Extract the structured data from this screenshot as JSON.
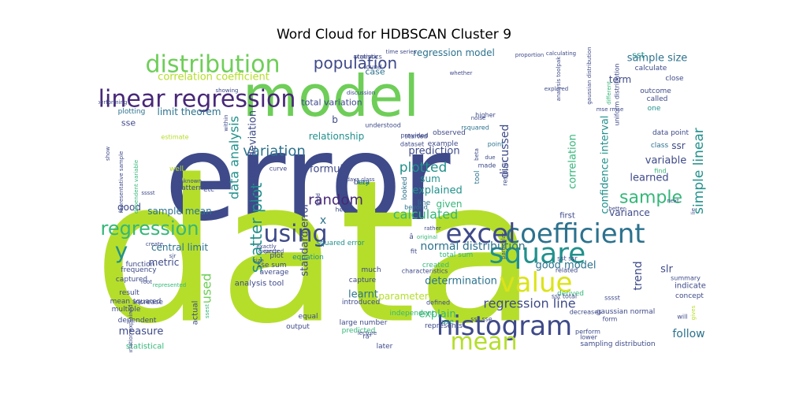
{
  "chart_data": {
    "type": "wordcloud",
    "title": "Word Cloud for HDBSCAN Cluster 9",
    "colors": {
      "dark_blue": "#3e4a89",
      "purple": "#482878",
      "teal": "#2c728e",
      "teal_green": "#21918c",
      "green": "#35b779",
      "light_green": "#6ece58",
      "lime": "#b5de2b",
      "yellow_green": "#dce319",
      "deep_purple": "#440154"
    },
    "words": [
      {
        "text": "error",
        "weight": 1.0,
        "color": "#3e4a89"
      },
      {
        "text": "data",
        "weight": 0.95,
        "color": "#b5de2b"
      },
      {
        "text": "model",
        "weight": 0.6,
        "color": "#6ece58"
      },
      {
        "text": "linear regression",
        "weight": 0.3,
        "color": "#482878"
      },
      {
        "text": "distribution",
        "weight": 0.26,
        "color": "#6ece58"
      },
      {
        "text": "histogram",
        "weight": 0.24,
        "color": "#3e4a89"
      },
      {
        "text": "coefficient",
        "weight": 0.24,
        "color": "#2c728e"
      },
      {
        "text": "square",
        "weight": 0.26,
        "color": "#21918c"
      },
      {
        "text": "excel",
        "weight": 0.24,
        "color": "#3e4a89"
      },
      {
        "text": "value",
        "weight": 0.22,
        "color": "#dce319"
      },
      {
        "text": "mean",
        "weight": 0.22,
        "color": "#b5de2b"
      },
      {
        "text": "scatter plot",
        "weight": 0.16,
        "color": "#21918c"
      },
      {
        "text": "using",
        "weight": 0.2,
        "color": "#3e4a89"
      },
      {
        "text": "regression",
        "weight": 0.16,
        "color": "#35b779"
      },
      {
        "text": "population",
        "weight": 0.14,
        "color": "#3e4a89"
      },
      {
        "text": "sample",
        "weight": 0.13,
        "color": "#35b779"
      },
      {
        "text": "variation",
        "weight": 0.12,
        "color": "#2c728e"
      },
      {
        "text": "random",
        "weight": 0.12,
        "color": "#482878"
      },
      {
        "text": "y",
        "weight": 0.16,
        "color": "#21918c"
      },
      {
        "text": "x",
        "weight": 0.09,
        "color": "#2c728e"
      },
      {
        "text": "data analysis",
        "weight": 0.1,
        "color": "#21918c"
      },
      {
        "text": "plotted",
        "weight": 0.1,
        "color": "#21918c"
      },
      {
        "text": "calculated",
        "weight": 0.1,
        "color": "#35b779"
      },
      {
        "text": "simple linear",
        "weight": 0.09,
        "color": "#21918c"
      },
      {
        "text": "discussed",
        "weight": 0.09,
        "color": "#3e4a89"
      },
      {
        "text": "regression line",
        "weight": 0.09,
        "color": "#3e4a89"
      },
      {
        "text": "used",
        "weight": 0.09,
        "color": "#6ece58"
      },
      {
        "text": "correlation coefficient",
        "weight": 0.08,
        "color": "#b5de2b"
      },
      {
        "text": "standard deviation",
        "weight": 0.07,
        "color": "#3e4a89"
      },
      {
        "text": "standard error",
        "weight": 0.07,
        "color": "#3e4a89"
      },
      {
        "text": "confidence interval",
        "weight": 0.07,
        "color": "#21918c"
      },
      {
        "text": "correlation",
        "weight": 0.07,
        "color": "#35b779"
      },
      {
        "text": "normal distribution",
        "weight": 0.08,
        "color": "#2c728e"
      },
      {
        "text": "determination",
        "weight": 0.07,
        "color": "#2c728e"
      },
      {
        "text": "learnt",
        "weight": 0.07,
        "color": "#2c728e"
      },
      {
        "text": "explain",
        "weight": 0.07,
        "color": "#35b779"
      },
      {
        "text": "parameter",
        "weight": 0.07,
        "color": "#b5de2b"
      },
      {
        "text": "formula",
        "weight": 0.07,
        "color": "#3e4a89"
      },
      {
        "text": "prediction",
        "weight": 0.07,
        "color": "#3e4a89"
      },
      {
        "text": "explained",
        "weight": 0.07,
        "color": "#21918c"
      },
      {
        "text": "relationship",
        "weight": 0.07,
        "color": "#21918c"
      },
      {
        "text": "sample size",
        "weight": 0.07,
        "color": "#2c728e"
      },
      {
        "text": "sample mean",
        "weight": 0.06,
        "color": "#2c728e"
      },
      {
        "text": "central limit",
        "weight": 0.06,
        "color": "#2c728e"
      },
      {
        "text": "regression model",
        "weight": 0.06,
        "color": "#2c728e"
      },
      {
        "text": "total variation",
        "weight": 0.06,
        "color": "#3e4a89"
      },
      {
        "text": "limit theorem",
        "weight": 0.06,
        "color": "#2c728e"
      },
      {
        "text": "sum",
        "weight": 0.06,
        "color": "#21918c"
      },
      {
        "text": "given",
        "weight": 0.06,
        "color": "#35b779"
      },
      {
        "text": "measure",
        "weight": 0.06,
        "color": "#3e4a89"
      },
      {
        "text": "variable",
        "weight": 0.06,
        "color": "#3e4a89"
      },
      {
        "text": "learned",
        "weight": 0.06,
        "color": "#3e4a89"
      },
      {
        "text": "variance",
        "weight": 0.05,
        "color": "#3e4a89"
      },
      {
        "text": "good model",
        "weight": 0.06,
        "color": "#2c728e"
      },
      {
        "text": "trend",
        "weight": 0.06,
        "color": "#3e4a89"
      },
      {
        "text": "slr",
        "weight": 0.06,
        "color": "#3e4a89"
      },
      {
        "text": "follow",
        "weight": 0.06,
        "color": "#2c728e"
      },
      {
        "text": "metric",
        "weight": 0.05,
        "color": "#3e4a89"
      },
      {
        "text": "good",
        "weight": 0.05,
        "color": "#3e4a89"
      },
      {
        "text": "term",
        "weight": 0.05,
        "color": "#3e4a89"
      },
      {
        "text": "case",
        "weight": 0.05,
        "color": "#2c728e"
      },
      {
        "text": "ssr",
        "weight": 0.05,
        "color": "#3e4a89"
      },
      {
        "text": "sst",
        "weight": 0.05,
        "color": "#21918c"
      },
      {
        "text": "sse",
        "weight": 0.05,
        "color": "#3e4a89"
      },
      {
        "text": "b",
        "weight": 0.05,
        "color": "#3e4a89"
      },
      {
        "text": "plotting",
        "weight": 0.04,
        "color": "#2c728e"
      },
      {
        "text": "calculate",
        "weight": 0.04,
        "color": "#3e4a89"
      },
      {
        "text": "outcome",
        "weight": 0.04,
        "color": "#3e4a89"
      },
      {
        "text": "close",
        "weight": 0.04,
        "color": "#3e4a89"
      },
      {
        "text": "called",
        "weight": 0.04,
        "color": "#3e4a89"
      },
      {
        "text": "one",
        "weight": 0.04,
        "color": "#21918c"
      },
      {
        "text": "data point",
        "weight": 0.04,
        "color": "#3e4a89"
      },
      {
        "text": "observed",
        "weight": 0.04,
        "color": "#3e4a89"
      },
      {
        "text": "example",
        "weight": 0.04,
        "color": "#3e4a89"
      },
      {
        "text": "provided",
        "weight": 0.03,
        "color": "#3e4a89"
      },
      {
        "text": "dataset",
        "weight": 0.03,
        "color": "#3e4a89"
      },
      {
        "text": "captured",
        "weight": 0.04,
        "color": "#3e4a89"
      },
      {
        "text": "function",
        "weight": 0.04,
        "color": "#3e4a89"
      },
      {
        "text": "frequency",
        "weight": 0.04,
        "color": "#3e4a89"
      },
      {
        "text": "result",
        "weight": 0.04,
        "color": "#3e4a89"
      },
      {
        "text": "multiple",
        "weight": 0.04,
        "color": "#3e4a89"
      },
      {
        "text": "dependent",
        "weight": 0.04,
        "color": "#3e4a89"
      },
      {
        "text": "statistical",
        "weight": 0.04,
        "color": "#35b779"
      },
      {
        "text": "increase",
        "weight": 0.03,
        "color": "#3e4a89"
      },
      {
        "text": "mean squared",
        "weight": 0.03,
        "color": "#3e4a89"
      },
      {
        "text": "average",
        "weight": 0.03,
        "color": "#3e4a89"
      },
      {
        "text": "analysis tool",
        "weight": 0.04,
        "color": "#3e4a89"
      },
      {
        "text": "equation",
        "weight": 0.03,
        "color": "#21918c"
      },
      {
        "text": "equal",
        "weight": 0.03,
        "color": "#3e4a89"
      },
      {
        "text": "output",
        "weight": 0.03,
        "color": "#3e4a89"
      },
      {
        "text": "much",
        "weight": 0.03,
        "color": "#3e4a89"
      },
      {
        "text": "capture",
        "weight": 0.03,
        "color": "#3e4a89"
      },
      {
        "text": "introduced",
        "weight": 0.03,
        "color": "#3e4a89"
      },
      {
        "text": "large number",
        "weight": 0.03,
        "color": "#3e4a89"
      },
      {
        "text": "predicted",
        "weight": 0.03,
        "color": "#35b779"
      },
      {
        "text": "defined",
        "weight": 0.03,
        "color": "#3e4a89"
      },
      {
        "text": "represents",
        "weight": 0.03,
        "color": "#3e4a89"
      },
      {
        "text": "use",
        "weight": 0.03,
        "color": "#21918c"
      },
      {
        "text": "later",
        "weight": 0.03,
        "color": "#3e4a89"
      },
      {
        "text": "fit",
        "weight": 0.03,
        "color": "#3e4a89"
      },
      {
        "text": "squared error",
        "weight": 0.03,
        "color": "#21918c"
      },
      {
        "text": "plot",
        "weight": 0.03,
        "color": "#3e4a89"
      },
      {
        "text": "pattern",
        "weight": 0.03,
        "color": "#3e4a89"
      },
      {
        "text": "etc",
        "weight": 0.03,
        "color": "#3e4a89"
      },
      {
        "text": "well",
        "weight": 0.03,
        "color": "#b5de2b"
      },
      {
        "text": "estimate",
        "weight": 0.02,
        "color": "#b5de2b"
      },
      {
        "text": "actual",
        "weight": 0.03,
        "color": "#3e4a89"
      },
      {
        "text": "sampling distribution",
        "weight": 0.03,
        "color": "#3e4a89"
      },
      {
        "text": "gaussian normal",
        "weight": 0.03,
        "color": "#3e4a89"
      },
      {
        "text": "indicate",
        "weight": 0.03,
        "color": "#3e4a89"
      },
      {
        "text": "concept",
        "weight": 0.03,
        "color": "#3e4a89"
      },
      {
        "text": "derived",
        "weight": 0.03,
        "color": "#35b779"
      },
      {
        "text": "first",
        "weight": 0.03,
        "color": "#3e4a89"
      },
      {
        "text": "sst ssr",
        "weight": 0.02,
        "color": "#3e4a89"
      },
      {
        "text": "sst total",
        "weight": 0.02,
        "color": "#3e4a89"
      },
      {
        "text": "related",
        "weight": 0.02,
        "color": "#3e4a89"
      },
      {
        "text": "summary",
        "weight": 0.02,
        "color": "#3e4a89"
      },
      {
        "text": "find",
        "weight": 0.02,
        "color": "#35b779"
      },
      {
        "text": "class",
        "weight": 0.02,
        "color": "#2c728e"
      },
      {
        "text": "beta",
        "weight": 0.02,
        "color": "#3e4a89"
      },
      {
        "text": "key",
        "weight": 0.02,
        "color": "#21918c"
      },
      {
        "text": "line",
        "weight": 0.03,
        "color": "#2c728e"
      },
      {
        "text": "started",
        "weight": 0.02,
        "color": "#3e4a89"
      },
      {
        "text": "understood",
        "weight": 0.02,
        "color": "#3e4a89"
      },
      {
        "text": "rsquared",
        "weight": 0.02,
        "color": "#2c728e"
      },
      {
        "text": "higher",
        "weight": 0.02,
        "color": "#3e4a89"
      },
      {
        "text": "point",
        "weight": 0.02,
        "color": "#2c728e"
      },
      {
        "text": "made",
        "weight": 0.02,
        "color": "#3e4a89"
      },
      {
        "text": "residual",
        "weight": 0.02,
        "color": "#3e4a89"
      },
      {
        "text": "tool",
        "weight": 0.02,
        "color": "#2c728e"
      },
      {
        "text": "looked",
        "weight": 0.02,
        "color": "#2c728e"
      },
      {
        "text": "beyond",
        "weight": 0.02,
        "color": "#2c728e"
      },
      {
        "text": "total sum",
        "weight": 0.02,
        "color": "#35b779"
      },
      {
        "text": "created",
        "weight": 0.02,
        "color": "#35b779"
      },
      {
        "text": "independent",
        "weight": 0.02,
        "color": "#35b779"
      },
      {
        "text": "decreases",
        "weight": 0.02,
        "color": "#3e4a89"
      },
      {
        "text": "form",
        "weight": 0.02,
        "color": "#3e4a89"
      },
      {
        "text": "ssr sse",
        "weight": 0.02,
        "color": "#3e4a89"
      },
      {
        "text": "sssst",
        "weight": 0.02,
        "color": "#3e4a89"
      },
      {
        "text": "perform",
        "weight": 0.02,
        "color": "#3e4a89"
      },
      {
        "text": "lower",
        "weight": 0.02,
        "color": "#3e4a89"
      },
      {
        "text": "will",
        "weight": 0.02,
        "color": "#3e4a89"
      },
      {
        "text": "todays class",
        "weight": 0.02,
        "color": "#3e4a89"
      },
      {
        "text": "statistics",
        "weight": 0.02,
        "color": "#3e4a89"
      },
      {
        "text": "accuracy",
        "weight": 0.02,
        "color": "#3e4a89"
      },
      {
        "text": "time series",
        "weight": 0.02,
        "color": "#3e4a89"
      },
      {
        "text": "discussion",
        "weight": 0.02,
        "color": "#3e4a89"
      },
      {
        "text": "found",
        "weight": 0.02,
        "color": "#3e4a89"
      },
      {
        "text": "proportion",
        "weight": 0.02,
        "color": "#3e4a89"
      },
      {
        "text": "calculating",
        "weight": 0.02,
        "color": "#3e4a89"
      },
      {
        "text": "analysis toolpak",
        "weight": 0.02,
        "color": "#3e4a89"
      },
      {
        "text": "gaussian distribution",
        "weight": 0.02,
        "color": "#3e4a89"
      },
      {
        "text": "uniform distribution",
        "weight": 0.02,
        "color": "#3e4a89"
      },
      {
        "text": "mse rmse",
        "weight": 0.02,
        "color": "#3e4a89"
      },
      {
        "text": "explored",
        "weight": 0.02,
        "color": "#3e4a89"
      },
      {
        "text": "different",
        "weight": 0.02,
        "color": "#35b779"
      },
      {
        "text": "noise",
        "weight": 0.02,
        "color": "#3e4a89"
      },
      {
        "text": "showing",
        "weight": 0.02,
        "color": "#3e4a89"
      },
      {
        "text": "performing",
        "weight": 0.02,
        "color": "#3e4a89"
      },
      {
        "text": "within",
        "weight": 0.02,
        "color": "#3e4a89"
      },
      {
        "text": "show",
        "weight": 0.02,
        "color": "#3e4a89"
      },
      {
        "text": "representative sample",
        "weight": 0.02,
        "color": "#3e4a89"
      },
      {
        "text": "dependent variable",
        "weight": 0.02,
        "color": "#35b779"
      },
      {
        "text": "variation explained",
        "weight": 0.02,
        "color": "#3e4a89"
      },
      {
        "text": "unknown",
        "weight": 0.02,
        "color": "#3e4a89"
      },
      {
        "text": "sssst",
        "weight": 0.02,
        "color": "#3e4a89"
      },
      {
        "text": "root",
        "weight": 0.02,
        "color": "#3e4a89"
      },
      {
        "text": "represented",
        "weight": 0.02,
        "color": "#35b779"
      },
      {
        "text": "sir",
        "weight": 0.02,
        "color": "#3e4a89"
      },
      {
        "text": "expected",
        "weight": 0.02,
        "color": "#3e4a89"
      },
      {
        "text": "range",
        "weight": 0.02,
        "color": "#3e4a89"
      },
      {
        "text": "size",
        "weight": 0.02,
        "color": "#3e4a89"
      },
      {
        "text": "exactly",
        "weight": 0.02,
        "color": "#3e4a89"
      },
      {
        "text": "various",
        "weight": 0.02,
        "color": "#b5de2b"
      },
      {
        "text": "help",
        "weight": 0.02,
        "color": "#3e4a89"
      },
      {
        "text": "tend",
        "weight": 0.02,
        "color": "#3e4a89"
      },
      {
        "text": "rather",
        "weight": 0.02,
        "color": "#3e4a89"
      },
      {
        "text": "original",
        "weight": 0.02,
        "color": "#35b779"
      },
      {
        "text": "characteristics",
        "weight": 0.02,
        "color": "#3e4a89"
      },
      {
        "text": "lecture",
        "weight": 0.02,
        "color": "#3e4a89"
      },
      {
        "text": "better",
        "weight": 0.02,
        "color": "#3e4a89"
      },
      {
        "text": "lie",
        "weight": 0.02,
        "color": "#3e4a89"
      },
      {
        "text": "next",
        "weight": 0.02,
        "color": "#3e4a89"
      },
      {
        "text": "due",
        "weight": 0.02,
        "color": "#3e4a89"
      },
      {
        "text": "many",
        "weight": 0.02,
        "color": "#3e4a89"
      },
      {
        "text": "whether",
        "weight": 0.02,
        "color": "#3e4a89"
      },
      {
        "text": "r²",
        "weight": 0.03,
        "color": "#3e4a89"
      },
      {
        "text": "â",
        "weight": 0.02,
        "color": "#3e4a89"
      },
      {
        "text": "rã²",
        "weight": 0.03,
        "color": "#3e4a89"
      },
      {
        "text": "sse sum",
        "weight": 0.02,
        "color": "#3e4a89"
      },
      {
        "text": "ssest",
        "weight": 0.02,
        "color": "#35b779"
      },
      {
        "text": "create",
        "weight": 0.02,
        "color": "#3e4a89"
      },
      {
        "text": "particular",
        "weight": 0.02,
        "color": "#3e4a89"
      },
      {
        "text": "gives",
        "weight": 0.02,
        "color": "#b5de2b"
      },
      {
        "text": "curve",
        "weight": 0.02,
        "color": "#3e4a89"
      },
      {
        "text": "beta",
        "weight": 0.02,
        "color": "#3e4a89"
      }
    ]
  }
}
